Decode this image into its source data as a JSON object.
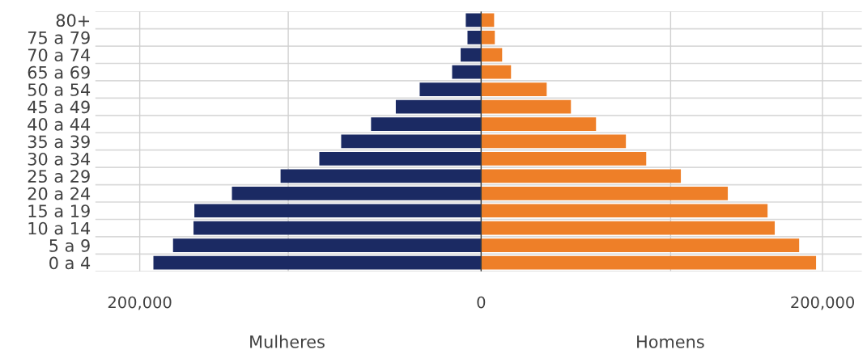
{
  "chart_data": {
    "type": "bar",
    "orientation": "horizontal",
    "categories": [
      "80+",
      "75 a 79",
      "70 a 74",
      "65 a 69",
      "50 a 54",
      "45 a 49",
      "40 a 44",
      "35 a 39",
      "30 a 34",
      "25 a 29",
      "20 a 24",
      "15 a 19",
      "10 a 14",
      "5 a 9",
      "0 a 4"
    ],
    "series": [
      {
        "color": "#1b2a63",
        "values": [
          -9000,
          -8000,
          -12000,
          -17000,
          -36000,
          -50000,
          -64500,
          -82000,
          -94800,
          -117500,
          -146000,
          -168000,
          -168500,
          -180500,
          -192000
        ]
      },
      {
        "color": "#ee7f28",
        "values": [
          7600,
          8000,
          12300,
          17500,
          38400,
          52600,
          67300,
          84800,
          96700,
          117000,
          144500,
          167800,
          172000,
          186300,
          196200
        ]
      }
    ],
    "xlim": [
      -226000,
      223000
    ],
    "xticks": [
      {
        "value": -200000,
        "label": "200,000"
      },
      {
        "value": -113000,
        "label": null
      },
      0,
      {
        "value": 111000,
        "label": null
      },
      {
        "value": 200000,
        "label": "200,000"
      }
    ],
    "stacked": true,
    "annotations": [
      "Mulheres",
      "Homens"
    ],
    "grid": true,
    "legend": false
  }
}
